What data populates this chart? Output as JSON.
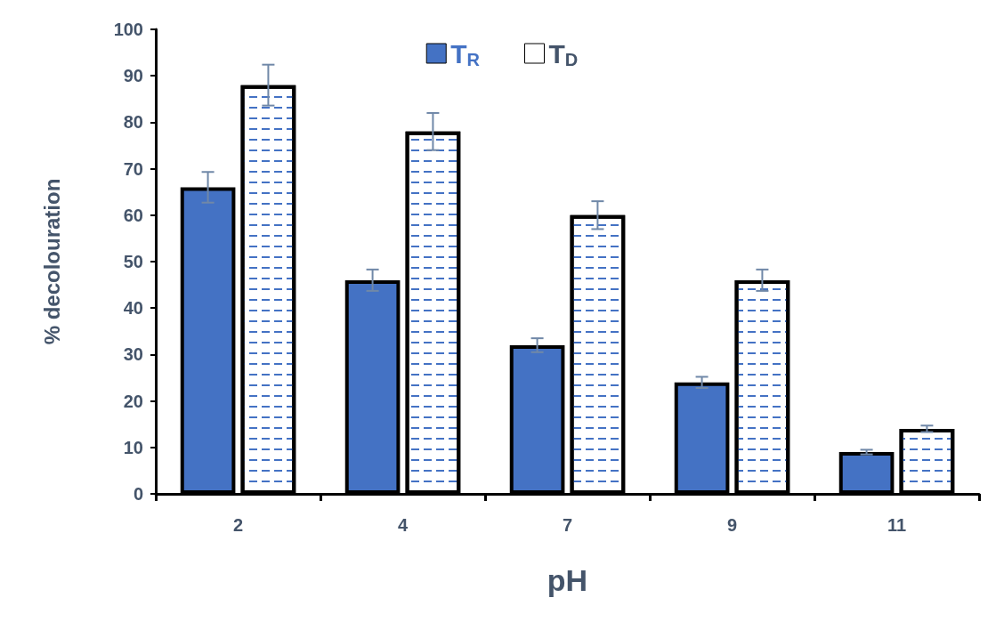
{
  "chart_data": {
    "type": "bar",
    "xlabel": "pH",
    "ylabel": "% decolouration",
    "categories": [
      "2",
      "4",
      "7",
      "9",
      "11"
    ],
    "series": [
      {
        "name": "T$_{R}$",
        "color": "#4472c4",
        "values": [
          66,
          46,
          32,
          24,
          9
        ],
        "errors": [
          3.3,
          2.3,
          1.5,
          1.2,
          0.5
        ]
      },
      {
        "name": "T$_{D}$",
        "color": "#ffffff",
        "values": [
          88,
          78,
          60,
          46,
          14
        ],
        "errors": [
          4.4,
          4,
          3,
          2.3,
          0.7
        ]
      }
    ],
    "ylim": [
      0,
      100
    ],
    "yticks": [
      0,
      10,
      20,
      30,
      40,
      50,
      60,
      70,
      80,
      90,
      100
    ],
    "grid": false,
    "legend": "top"
  }
}
